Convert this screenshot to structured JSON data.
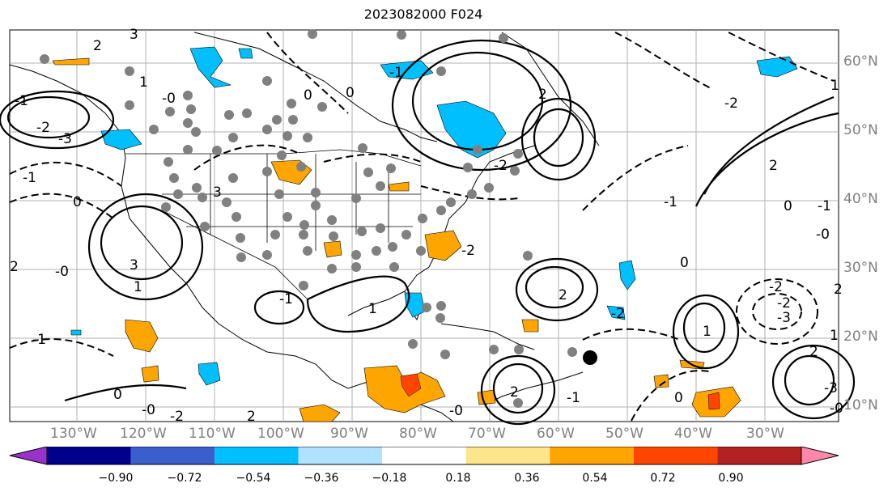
{
  "title": "2023082000 F024",
  "lon_labels": [
    "130°W",
    "120°W",
    "110°W",
    "100°W",
    "90°W",
    "80°W",
    "70°W",
    "60°W",
    "50°W",
    "40°W",
    "30°W"
  ],
  "lat_labels": [
    "60°N",
    "50°N",
    "40°N",
    "30°N",
    "20°N",
    "10°N"
  ],
  "colorbar": {
    "ticks": [
      "−0.90",
      "−0.72",
      "−0.54",
      "−0.36",
      "−0.18",
      "0.18",
      "0.36",
      "0.54",
      "0.72",
      "0.90"
    ],
    "colors": [
      "#9932cc",
      "#00008b",
      "#3a5fcd",
      "#00bfff",
      "#b0e2ff",
      "#ffffff",
      "#fde58b",
      "#ffa500",
      "#ff4500",
      "#b22222",
      "#ff88aa"
    ]
  },
  "contour_labels": [
    "2",
    "3",
    "1",
    "-0",
    "0",
    "-2",
    "-3",
    "-1",
    "0",
    "-0",
    "2",
    "1",
    "3",
    "-1",
    "-0",
    "-2",
    "2",
    "-2",
    "2",
    "0",
    "-1",
    "-2",
    "2",
    "0",
    "-1",
    "-2",
    "-3",
    "1",
    "0",
    "-1",
    "2",
    "-2",
    "-2",
    "-1",
    "3",
    "2",
    "1",
    "-3",
    "1",
    "-1",
    "0",
    "-0",
    "1",
    "2",
    "-2",
    "0",
    "-0",
    "2",
    "-0",
    "-1"
  ],
  "station_marker": "storm-position"
}
